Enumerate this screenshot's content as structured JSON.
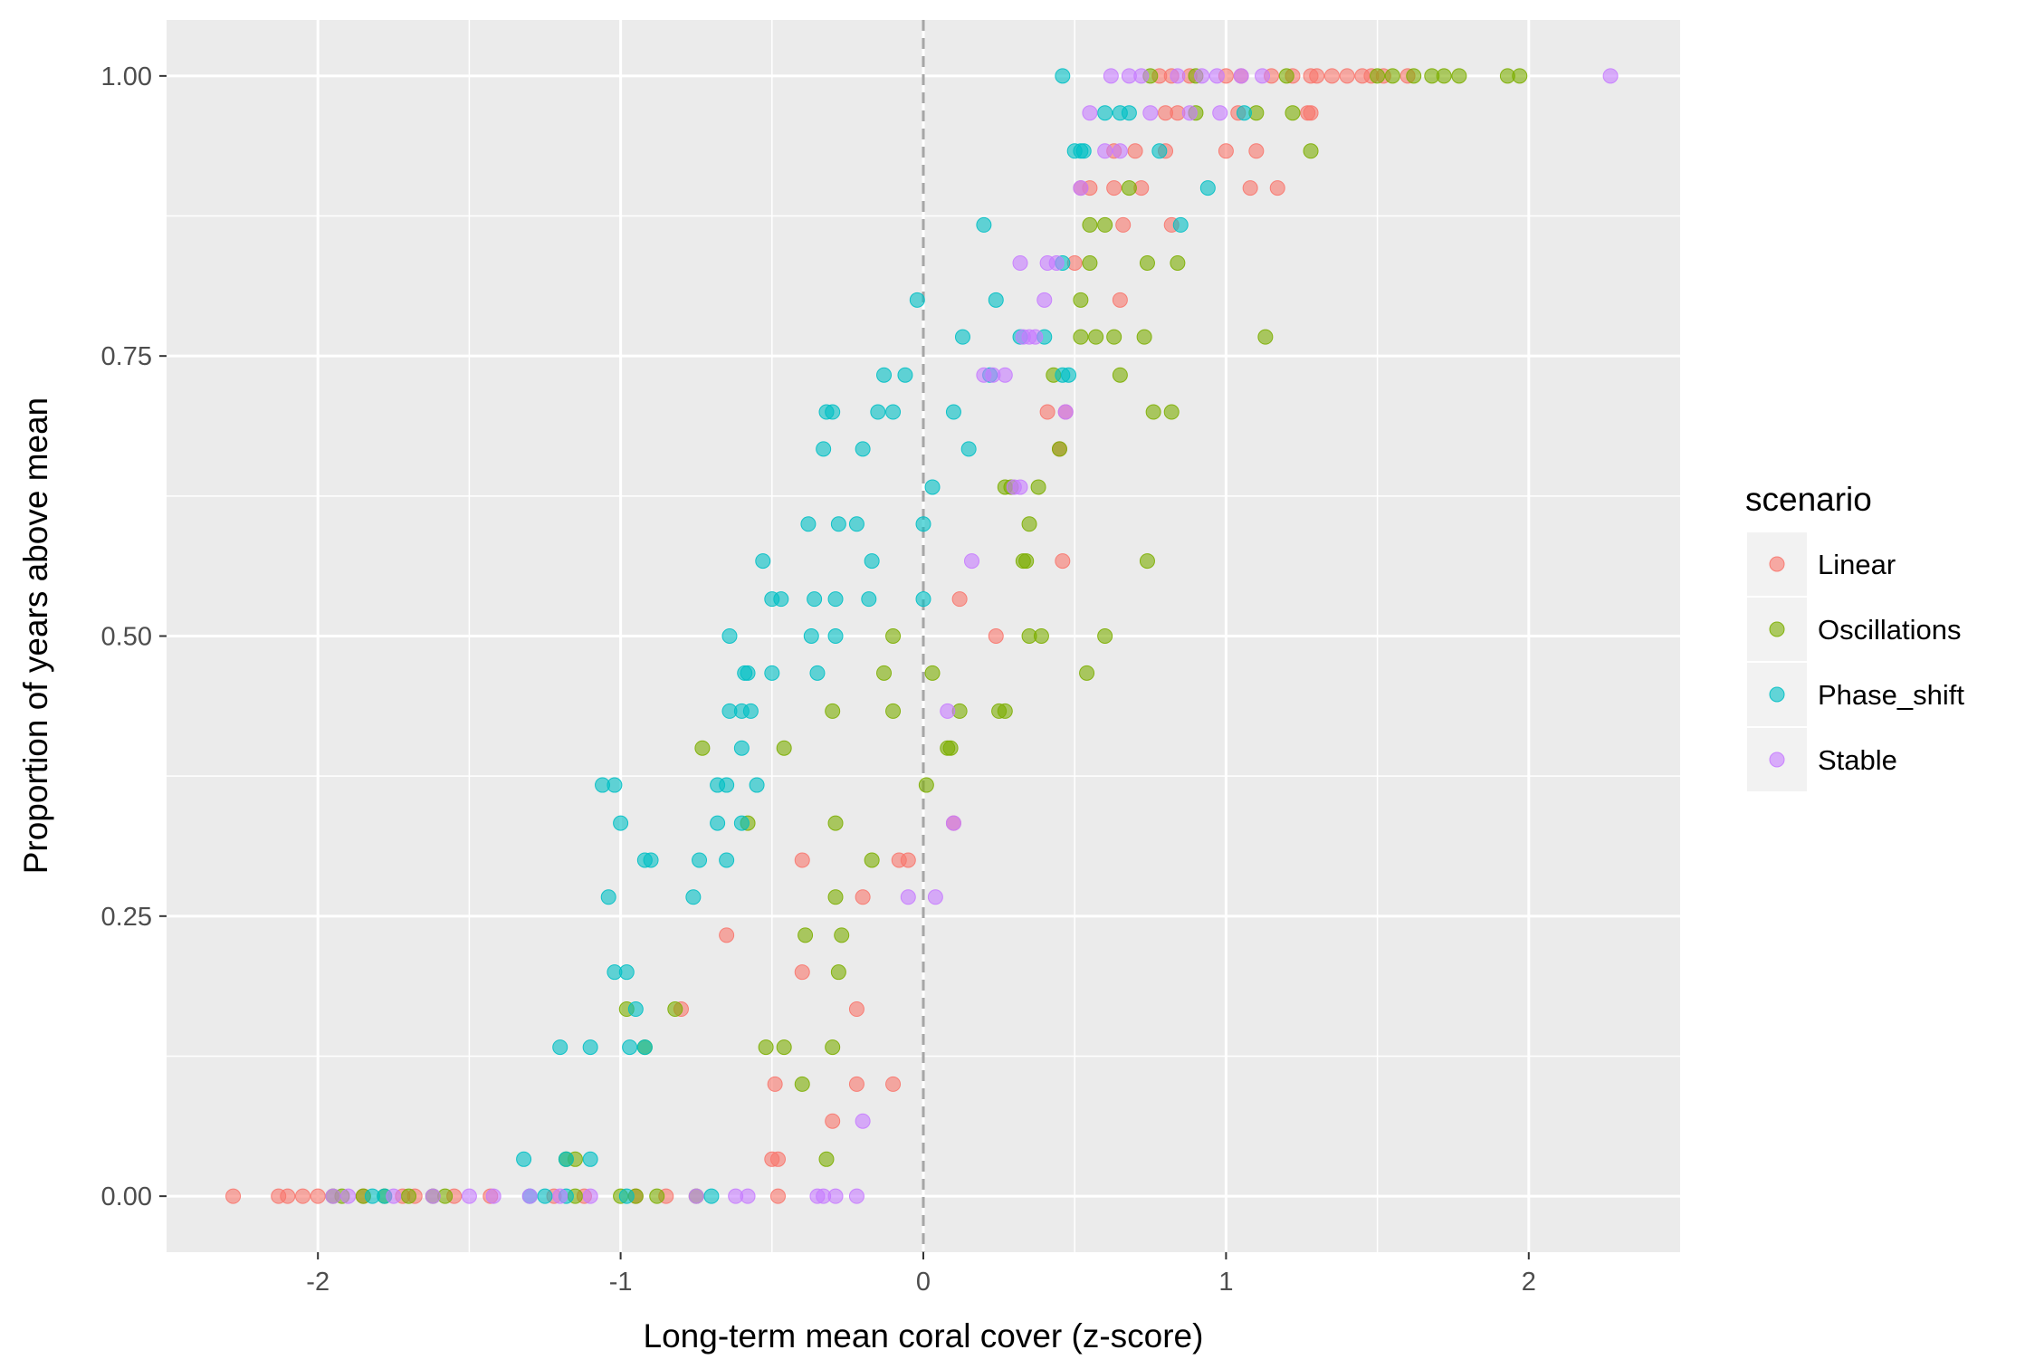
{
  "chart_data": {
    "type": "scatter",
    "xlabel": "Long-term mean coral cover (z-score)",
    "ylabel": "Proportion of years above mean",
    "xlim": [
      -2.5,
      2.5
    ],
    "ylim": [
      -0.05,
      1.05
    ],
    "x_ticks": [
      -2,
      -1,
      0,
      1,
      2
    ],
    "x_tick_labels": [
      "-2",
      "-1",
      "0",
      "1",
      "2"
    ],
    "y_ticks": [
      0,
      0.25,
      0.5,
      0.75,
      1
    ],
    "y_tick_labels": [
      "0.00",
      "0.25",
      "0.50",
      "0.75",
      "1.00"
    ],
    "reference_line": {
      "x": 0,
      "style": "dashed",
      "color": "#a6a6a6"
    },
    "grid": true,
    "panel_background": "#ebebeb",
    "point_opacity": 0.6,
    "legend": {
      "title": "scenario",
      "position": "right"
    },
    "series": [
      {
        "name": "Linear",
        "color": "#F8766D",
        "points": [
          [
            -2.28,
            0
          ],
          [
            -2.13,
            0
          ],
          [
            -2.1,
            0
          ],
          [
            -2.05,
            0
          ],
          [
            -2.0,
            0
          ],
          [
            -1.85,
            0
          ],
          [
            -1.72,
            0
          ],
          [
            -1.68,
            0
          ],
          [
            -1.55,
            0
          ],
          [
            -1.43,
            0
          ],
          [
            -1.22,
            0
          ],
          [
            -1.12,
            0
          ],
          [
            -0.95,
            0
          ],
          [
            -0.85,
            0
          ],
          [
            -0.48,
            0
          ],
          [
            -0.5,
            0.033
          ],
          [
            -0.48,
            0.033
          ],
          [
            -0.3,
            0.067
          ],
          [
            -0.22,
            0.1
          ],
          [
            -0.1,
            0.1
          ],
          [
            -0.49,
            0.1
          ],
          [
            -0.4,
            0.2
          ],
          [
            -0.22,
            0.167
          ],
          [
            -0.8,
            0.167
          ],
          [
            -0.65,
            0.233
          ],
          [
            -0.2,
            0.267
          ],
          [
            -0.4,
            0.3
          ],
          [
            -0.08,
            0.3
          ],
          [
            -0.05,
            0.3
          ],
          [
            0.1,
            0.333
          ],
          [
            0.12,
            0.533
          ],
          [
            0.24,
            0.5
          ],
          [
            0.46,
            0.567
          ],
          [
            0.45,
            0.667
          ],
          [
            0.41,
            0.7
          ],
          [
            0.47,
            0.7
          ],
          [
            0.65,
            0.8
          ],
          [
            0.5,
            0.833
          ],
          [
            0.66,
            0.867
          ],
          [
            0.82,
            0.867
          ],
          [
            0.52,
            0.9
          ],
          [
            0.63,
            0.9
          ],
          [
            0.7,
            0.933
          ],
          [
            0.8,
            0.933
          ],
          [
            0.63,
            0.933
          ],
          [
            1.0,
            0.933
          ],
          [
            1.1,
            0.933
          ],
          [
            0.55,
            0.9
          ],
          [
            0.72,
            0.9
          ],
          [
            1.08,
            0.9
          ],
          [
            1.17,
            0.9
          ],
          [
            0.8,
            0.967
          ],
          [
            0.84,
            0.967
          ],
          [
            1.04,
            0.967
          ],
          [
            1.27,
            0.967
          ],
          [
            1.28,
            0.967
          ],
          [
            0.78,
            1
          ],
          [
            0.82,
            1
          ],
          [
            0.88,
            1
          ],
          [
            1.0,
            1
          ],
          [
            1.05,
            1
          ],
          [
            1.15,
            1
          ],
          [
            1.22,
            1
          ],
          [
            1.28,
            1
          ],
          [
            1.3,
            1
          ],
          [
            1.35,
            1
          ],
          [
            1.4,
            1
          ],
          [
            1.45,
            1
          ],
          [
            1.48,
            1
          ],
          [
            1.52,
            1
          ],
          [
            1.6,
            1
          ]
        ]
      },
      {
        "name": "Oscillations",
        "color": "#7CAE00",
        "points": [
          [
            -1.95,
            0
          ],
          [
            -1.92,
            0
          ],
          [
            -1.85,
            0
          ],
          [
            -1.78,
            0
          ],
          [
            -1.7,
            0
          ],
          [
            -1.62,
            0
          ],
          [
            -1.58,
            0
          ],
          [
            -1.15,
            0
          ],
          [
            -1.0,
            0
          ],
          [
            -0.95,
            0
          ],
          [
            -0.88,
            0
          ],
          [
            -0.75,
            0
          ],
          [
            -1.15,
            0.033
          ],
          [
            -0.32,
            0.033
          ],
          [
            -1.18,
            0.033
          ],
          [
            -0.4,
            0.1
          ],
          [
            -0.52,
            0.133
          ],
          [
            -0.46,
            0.133
          ],
          [
            -0.92,
            0.133
          ],
          [
            -0.3,
            0.133
          ],
          [
            -0.98,
            0.167
          ],
          [
            -0.82,
            0.167
          ],
          [
            -0.28,
            0.2
          ],
          [
            -0.39,
            0.233
          ],
          [
            -0.27,
            0.233
          ],
          [
            -0.29,
            0.267
          ],
          [
            -0.17,
            0.3
          ],
          [
            -0.29,
            0.333
          ],
          [
            -0.58,
            0.333
          ],
          [
            -0.3,
            0.433
          ],
          [
            -0.1,
            0.433
          ],
          [
            -0.46,
            0.4
          ],
          [
            -0.73,
            0.4
          ],
          [
            -0.13,
            0.467
          ],
          [
            -0.1,
            0.5
          ],
          [
            0.03,
            0.467
          ],
          [
            0.01,
            0.367
          ],
          [
            0.09,
            0.4
          ],
          [
            0.12,
            0.433
          ],
          [
            0.25,
            0.433
          ],
          [
            0.27,
            0.433
          ],
          [
            0.08,
            0.4
          ],
          [
            0.35,
            0.5
          ],
          [
            0.39,
            0.5
          ],
          [
            0.54,
            0.467
          ],
          [
            0.6,
            0.5
          ],
          [
            0.34,
            0.567
          ],
          [
            0.33,
            0.567
          ],
          [
            0.74,
            0.567
          ],
          [
            0.27,
            0.633
          ],
          [
            0.29,
            0.633
          ],
          [
            0.38,
            0.633
          ],
          [
            0.35,
            0.6
          ],
          [
            0.45,
            0.667
          ],
          [
            0.43,
            0.733
          ],
          [
            0.65,
            0.733
          ],
          [
            0.76,
            0.7
          ],
          [
            0.82,
            0.7
          ],
          [
            0.52,
            0.767
          ],
          [
            0.57,
            0.767
          ],
          [
            0.63,
            0.767
          ],
          [
            0.73,
            0.767
          ],
          [
            1.13,
            0.767
          ],
          [
            0.52,
            0.8
          ],
          [
            0.55,
            0.833
          ],
          [
            0.74,
            0.833
          ],
          [
            0.84,
            0.833
          ],
          [
            0.55,
            0.867
          ],
          [
            0.6,
            0.867
          ],
          [
            0.68,
            0.9
          ],
          [
            0.9,
            0.967
          ],
          [
            1.1,
            0.967
          ],
          [
            1.22,
            0.967
          ],
          [
            1.28,
            0.933
          ],
          [
            0.75,
            1
          ],
          [
            0.9,
            1
          ],
          [
            1.2,
            1
          ],
          [
            1.5,
            1
          ],
          [
            1.55,
            1
          ],
          [
            1.62,
            1
          ],
          [
            1.68,
            1
          ],
          [
            1.72,
            1
          ],
          [
            1.77,
            1
          ],
          [
            1.93,
            1
          ],
          [
            1.97,
            1
          ]
        ]
      },
      {
        "name": "Phase_shift",
        "color": "#00BFC4",
        "points": [
          [
            -1.82,
            0
          ],
          [
            -1.78,
            0
          ],
          [
            -1.3,
            0
          ],
          [
            -1.25,
            0
          ],
          [
            -1.18,
            0
          ],
          [
            -0.98,
            0
          ],
          [
            -0.7,
            0
          ],
          [
            -1.32,
            0.033
          ],
          [
            -1.18,
            0.033
          ],
          [
            -1.1,
            0.033
          ],
          [
            -1.2,
            0.133
          ],
          [
            -1.1,
            0.133
          ],
          [
            -0.97,
            0.133
          ],
          [
            -0.92,
            0.133
          ],
          [
            -0.95,
            0.167
          ],
          [
            -1.02,
            0.2
          ],
          [
            -0.98,
            0.2
          ],
          [
            -1.04,
            0.267
          ],
          [
            -0.76,
            0.267
          ],
          [
            -0.9,
            0.3
          ],
          [
            -0.92,
            0.3
          ],
          [
            -0.74,
            0.3
          ],
          [
            -0.65,
            0.3
          ],
          [
            -1.0,
            0.333
          ],
          [
            -0.68,
            0.333
          ],
          [
            -0.6,
            0.333
          ],
          [
            -1.06,
            0.367
          ],
          [
            -1.02,
            0.367
          ],
          [
            -0.68,
            0.367
          ],
          [
            -0.65,
            0.367
          ],
          [
            -0.55,
            0.367
          ],
          [
            -0.6,
            0.4
          ],
          [
            -0.64,
            0.433
          ],
          [
            -0.6,
            0.433
          ],
          [
            -0.57,
            0.433
          ],
          [
            -0.58,
            0.467
          ],
          [
            -0.59,
            0.467
          ],
          [
            -0.5,
            0.467
          ],
          [
            -0.64,
            0.5
          ],
          [
            -0.37,
            0.5
          ],
          [
            -0.29,
            0.5
          ],
          [
            -0.35,
            0.467
          ],
          [
            -0.5,
            0.533
          ],
          [
            -0.47,
            0.533
          ],
          [
            -0.36,
            0.533
          ],
          [
            -0.29,
            0.533
          ],
          [
            -0.18,
            0.533
          ],
          [
            0.0,
            0.533
          ],
          [
            -0.53,
            0.567
          ],
          [
            -0.17,
            0.567
          ],
          [
            -0.38,
            0.6
          ],
          [
            -0.28,
            0.6
          ],
          [
            -0.22,
            0.6
          ],
          [
            0.0,
            0.6
          ],
          [
            0.03,
            0.633
          ],
          [
            -0.33,
            0.667
          ],
          [
            -0.2,
            0.667
          ],
          [
            0.15,
            0.667
          ],
          [
            -0.3,
            0.7
          ],
          [
            -0.32,
            0.7
          ],
          [
            -0.15,
            0.7
          ],
          [
            -0.1,
            0.7
          ],
          [
            0.1,
            0.7
          ],
          [
            -0.13,
            0.733
          ],
          [
            -0.06,
            0.733
          ],
          [
            0.13,
            0.767
          ],
          [
            -0.02,
            0.8
          ],
          [
            0.24,
            0.8
          ],
          [
            0.22,
            0.733
          ],
          [
            0.32,
            0.767
          ],
          [
            0.46,
            0.733
          ],
          [
            0.48,
            0.733
          ],
          [
            0.4,
            0.767
          ],
          [
            0.2,
            0.867
          ],
          [
            0.46,
            0.833
          ],
          [
            0.85,
            0.867
          ],
          [
            0.5,
            0.933
          ],
          [
            0.52,
            0.933
          ],
          [
            0.53,
            0.933
          ],
          [
            0.78,
            0.933
          ],
          [
            0.94,
            0.9
          ],
          [
            0.68,
            0.967
          ],
          [
            0.6,
            0.967
          ],
          [
            0.65,
            0.967
          ],
          [
            1.06,
            0.967
          ],
          [
            0.46,
            1
          ]
        ]
      },
      {
        "name": "Stable",
        "color": "#C77CFF",
        "points": [
          [
            -1.95,
            0
          ],
          [
            -1.9,
            0
          ],
          [
            -1.75,
            0
          ],
          [
            -1.62,
            0
          ],
          [
            -1.5,
            0
          ],
          [
            -1.42,
            0
          ],
          [
            -1.3,
            0
          ],
          [
            -1.2,
            0
          ],
          [
            -1.1,
            0
          ],
          [
            -0.75,
            0
          ],
          [
            -0.62,
            0
          ],
          [
            -0.58,
            0
          ],
          [
            -0.35,
            0
          ],
          [
            -0.33,
            0
          ],
          [
            -0.29,
            0
          ],
          [
            -0.22,
            0
          ],
          [
            -0.2,
            0.067
          ],
          [
            -0.05,
            0.267
          ],
          [
            0.04,
            0.267
          ],
          [
            0.08,
            0.433
          ],
          [
            0.1,
            0.333
          ],
          [
            0.16,
            0.567
          ],
          [
            0.2,
            0.733
          ],
          [
            0.23,
            0.733
          ],
          [
            0.27,
            0.733
          ],
          [
            0.33,
            0.767
          ],
          [
            0.35,
            0.767
          ],
          [
            0.37,
            0.767
          ],
          [
            0.4,
            0.8
          ],
          [
            0.41,
            0.833
          ],
          [
            0.44,
            0.833
          ],
          [
            0.47,
            0.7
          ],
          [
            0.3,
            0.633
          ],
          [
            0.32,
            0.633
          ],
          [
            0.32,
            0.833
          ],
          [
            0.52,
            0.9
          ],
          [
            0.55,
            0.967
          ],
          [
            0.6,
            0.933
          ],
          [
            0.65,
            0.933
          ],
          [
            0.75,
            0.967
          ],
          [
            0.88,
            0.967
          ],
          [
            0.98,
            0.967
          ],
          [
            0.62,
            1
          ],
          [
            0.68,
            1
          ],
          [
            0.72,
            1
          ],
          [
            0.84,
            1
          ],
          [
            0.92,
            1
          ],
          [
            0.97,
            1
          ],
          [
            1.05,
            1
          ],
          [
            1.12,
            1
          ],
          [
            2.27,
            1
          ]
        ]
      }
    ]
  },
  "legend": {
    "title": "scenario",
    "items": [
      {
        "label": "Linear",
        "color": "#F8766D"
      },
      {
        "label": "Oscillations",
        "color": "#7CAE00"
      },
      {
        "label": "Phase_shift",
        "color": "#00BFC4"
      },
      {
        "label": "Stable",
        "color": "#C77CFF"
      }
    ]
  }
}
